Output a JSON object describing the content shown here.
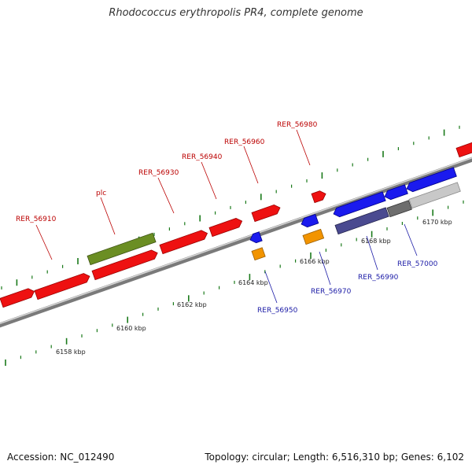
{
  "title": "Rhodococcus erythropolis PR4, complete genome",
  "footer": {
    "accession": "Accession: NC_012490",
    "summary": "Topology: circular; Length: 6,516,310 bp; Genes: 6,102"
  },
  "colors": {
    "forward_gene": "#ee1111",
    "reverse_gene": "#1a1aee",
    "highlight_gene": "#6b8e23",
    "orange_gene": "#f29400",
    "dark_purple_gene": "#4a4a90",
    "dark_grey_gene": "#6e6e6e",
    "light_grey_gene": "#c8c8c8",
    "forward_label": "#bb0000",
    "reverse_label": "#1a1aa6",
    "tick": "#1a7a1a",
    "backbone": "#909090"
  },
  "scale_labels": [
    "6158 kbp",
    "6160 kbp",
    "6162 kbp",
    "6164 kbp",
    "6166 kbp",
    "6168 kbp",
    "6170 kbp"
  ],
  "forward_labels": [
    "RER_56910",
    "plc",
    "RER_56930",
    "RER_56940",
    "RER_56960",
    "RER_56980"
  ],
  "reverse_labels": [
    "RER_56950",
    "RER_56970",
    "RER_56990",
    "RER_57000"
  ]
}
